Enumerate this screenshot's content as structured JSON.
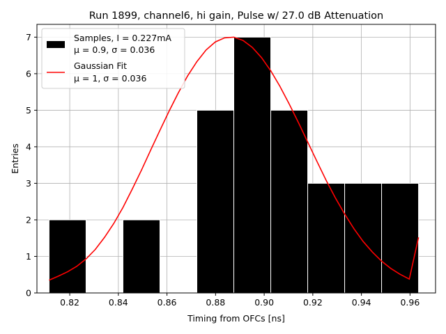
{
  "chart_data": {
    "type": "bar",
    "title": "Run 1899, channel6, hi gain, Pulse w/ 27.0 dB Attenuation",
    "xlabel": "Timing from OFCs [ns]",
    "ylabel": "Entries",
    "xlim": [
      0.8065,
      0.9705
    ],
    "ylim": [
      0,
      7.35
    ],
    "xticks": [
      0.82,
      0.84,
      0.86,
      0.88,
      0.9,
      0.92,
      0.94,
      0.96
    ],
    "xtick_labels": [
      "0.82",
      "0.84",
      "0.86",
      "0.88",
      "0.90",
      "0.92",
      "0.94",
      "0.96"
    ],
    "yticks": [
      0,
      1,
      2,
      3,
      4,
      5,
      6,
      7
    ],
    "ytick_labels": [
      "0",
      "1",
      "2",
      "3",
      "4",
      "5",
      "6",
      "7"
    ],
    "grid": true,
    "legend_position": "top-left",
    "bin_edges": [
      0.8115,
      0.8267,
      0.8419,
      0.8571,
      0.8723,
      0.8875,
      0.9027,
      0.9179,
      0.9331,
      0.9483,
      0.9635
    ],
    "histogram": {
      "name": "Samples, I = 0.227mA",
      "name_line2": "μ = 0.9, σ = 0.036",
      "color": "#000000",
      "edgecolor": "#ffffff",
      "values": [
        2,
        0,
        2,
        0,
        5,
        7,
        5,
        3,
        3,
        3
      ]
    },
    "fit": {
      "name": "Gaussian Fit",
      "name_line2": "μ = 1, σ = 0.036",
      "color": "#ff0000",
      "x": [
        0.8115,
        0.8153,
        0.8191,
        0.8229,
        0.8267,
        0.8305,
        0.8343,
        0.8381,
        0.8419,
        0.8457,
        0.8495,
        0.8533,
        0.8571,
        0.8609,
        0.8647,
        0.8685,
        0.8723,
        0.8761,
        0.8799,
        0.8837,
        0.8875,
        0.8913,
        0.8951,
        0.8989,
        0.9027,
        0.9065,
        0.9103,
        0.9141,
        0.9179,
        0.9217,
        0.9255,
        0.9293,
        0.9331,
        0.9369,
        0.9407,
        0.9445,
        0.9483,
        0.9521,
        0.9559,
        0.9597,
        0.9635
      ],
      "y": [
        0.35,
        0.46,
        0.58,
        0.73,
        0.93,
        1.19,
        1.52,
        1.9,
        2.34,
        2.84,
        3.36,
        3.91,
        4.45,
        4.98,
        5.48,
        5.94,
        6.33,
        6.65,
        6.87,
        6.98,
        7.0,
        6.91,
        6.72,
        6.44,
        6.08,
        5.65,
        5.17,
        4.66,
        4.13,
        3.6,
        3.08,
        2.6,
        2.16,
        1.76,
        1.41,
        1.12,
        0.87,
        0.67,
        0.51,
        0.38,
        1.52
      ]
    }
  }
}
